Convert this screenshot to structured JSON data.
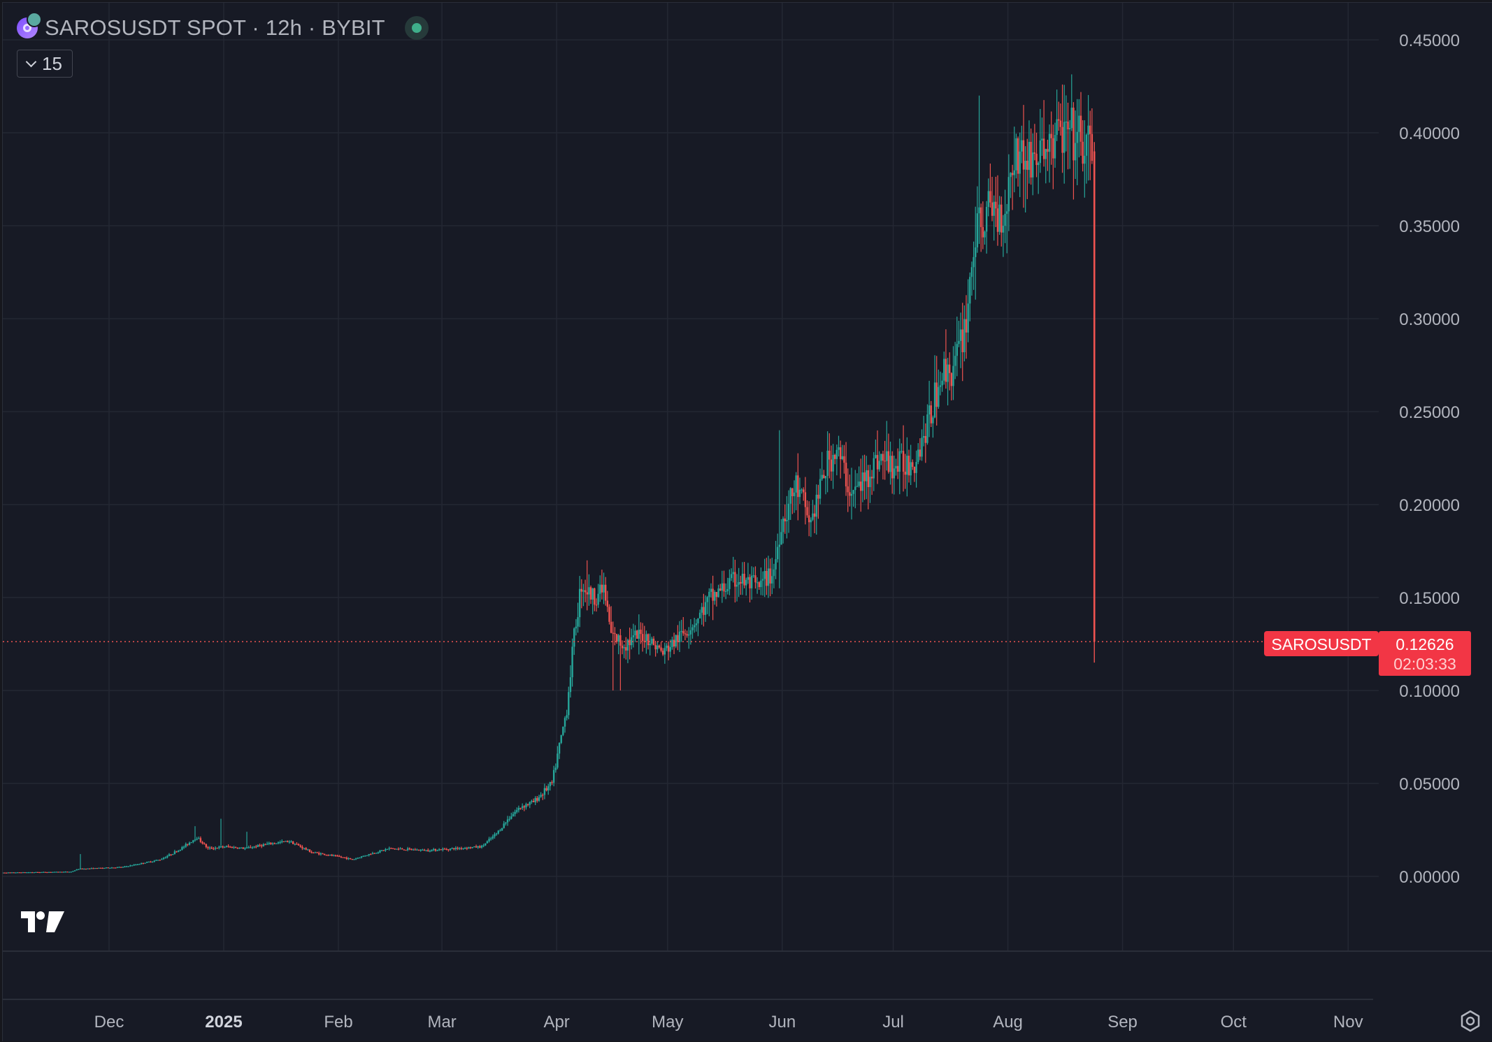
{
  "header": {
    "title": "SAROSUSDT SPOT · 12h · BYBIT",
    "indicator_count": "15"
  },
  "price_label": {
    "symbol": "SAROSUSDT",
    "price": "0.12626",
    "countdown": "02:03:33"
  },
  "colors": {
    "background": "#171a25",
    "up": "#26a69a",
    "down": "#ef5350",
    "grid": "#242733",
    "label_bg": "#f23645"
  },
  "chart_data": {
    "type": "candlestick",
    "symbol": "SAROSUSDT",
    "interval": "12h",
    "exchange": "BYBIT",
    "current_price": 0.12626,
    "ylim": [
      -0.04,
      0.46
    ],
    "y_ticks": [
      "0.45000",
      "0.40000",
      "0.35000",
      "0.30000",
      "0.25000",
      "0.20000",
      "0.15000",
      "0.10000",
      "0.05000",
      "0.00000"
    ],
    "x_ticks": [
      {
        "label": "Dec",
        "date": "2024-12-01"
      },
      {
        "label": "2025",
        "date": "2025-01-01",
        "bold": true
      },
      {
        "label": "Feb",
        "date": "2025-02-01"
      },
      {
        "label": "Mar",
        "date": "2025-03-01"
      },
      {
        "label": "Apr",
        "date": "2025-04-01"
      },
      {
        "label": "May",
        "date": "2025-05-01"
      },
      {
        "label": "Jun",
        "date": "2025-06-01"
      },
      {
        "label": "Jul",
        "date": "2025-07-01"
      },
      {
        "label": "Aug",
        "date": "2025-08-01"
      },
      {
        "label": "Sep",
        "date": "2025-09-01"
      },
      {
        "label": "Oct",
        "date": "2025-10-01"
      },
      {
        "label": "Nov",
        "date": "2025-11-01"
      }
    ],
    "price_path": [
      [
        "2024-11-01",
        0.002
      ],
      [
        "2024-11-21",
        0.0025
      ],
      [
        "2024-11-23",
        0.004
      ],
      [
        "2024-12-05",
        0.005
      ],
      [
        "2024-12-15",
        0.009
      ],
      [
        "2024-12-20",
        0.014
      ],
      [
        "2024-12-25",
        0.021
      ],
      [
        "2024-12-28",
        0.015
      ],
      [
        "2025-01-02",
        0.016
      ],
      [
        "2025-01-07",
        0.015
      ],
      [
        "2025-01-12",
        0.017
      ],
      [
        "2025-01-19",
        0.019
      ],
      [
        "2025-01-25",
        0.013
      ],
      [
        "2025-02-03",
        0.01
      ],
      [
        "2025-02-05",
        0.009
      ],
      [
        "2025-02-08",
        0.011
      ],
      [
        "2025-02-15",
        0.015
      ],
      [
        "2025-02-25",
        0.014
      ],
      [
        "2025-03-05",
        0.015
      ],
      [
        "2025-03-12",
        0.016
      ],
      [
        "2025-03-16",
        0.023
      ],
      [
        "2025-03-20",
        0.033
      ],
      [
        "2025-03-23",
        0.038
      ],
      [
        "2025-03-26",
        0.04
      ],
      [
        "2025-03-31",
        0.05
      ],
      [
        "2025-04-02",
        0.07
      ],
      [
        "2025-04-04",
        0.09
      ],
      [
        "2025-04-06",
        0.13
      ],
      [
        "2025-04-08",
        0.158
      ],
      [
        "2025-04-11",
        0.15
      ],
      [
        "2025-04-14",
        0.155
      ],
      [
        "2025-04-16",
        0.13
      ],
      [
        "2025-04-19",
        0.125
      ],
      [
        "2025-04-25",
        0.13
      ],
      [
        "2025-04-30",
        0.12
      ],
      [
        "2025-05-05",
        0.13
      ],
      [
        "2025-05-09",
        0.138
      ],
      [
        "2025-05-13",
        0.15
      ],
      [
        "2025-05-20",
        0.16
      ],
      [
        "2025-05-26",
        0.155
      ],
      [
        "2025-05-30",
        0.165
      ],
      [
        "2025-06-01",
        0.19
      ],
      [
        "2025-06-05",
        0.21
      ],
      [
        "2025-06-09",
        0.19
      ],
      [
        "2025-06-13",
        0.22
      ],
      [
        "2025-06-16",
        0.23
      ],
      [
        "2025-06-20",
        0.205
      ],
      [
        "2025-06-24",
        0.215
      ],
      [
        "2025-06-27",
        0.225
      ],
      [
        "2025-07-02",
        0.22
      ],
      [
        "2025-07-07",
        0.225
      ],
      [
        "2025-07-11",
        0.245
      ],
      [
        "2025-07-14",
        0.27
      ],
      [
        "2025-07-18",
        0.275
      ],
      [
        "2025-07-21",
        0.3
      ],
      [
        "2025-07-23",
        0.34
      ],
      [
        "2025-07-25",
        0.35
      ],
      [
        "2025-07-28",
        0.36
      ],
      [
        "2025-07-31",
        0.355
      ],
      [
        "2025-08-03",
        0.39
      ],
      [
        "2025-08-07",
        0.385
      ],
      [
        "2025-08-11",
        0.39
      ],
      [
        "2025-08-15",
        0.4
      ],
      [
        "2025-08-20",
        0.395
      ],
      [
        "2025-08-23",
        0.39
      ]
    ],
    "last_candle": {
      "date": "2025-08-24",
      "open": 0.39,
      "high": 0.395,
      "low": 0.115,
      "close": 0.12626
    },
    "wick_highs": [
      {
        "date": "2024-11-23",
        "high": 0.012
      },
      {
        "date": "2024-12-24",
        "high": 0.027
      },
      {
        "date": "2024-12-31",
        "high": 0.031
      },
      {
        "date": "2025-01-07",
        "high": 0.024
      },
      {
        "date": "2025-04-09",
        "high": 0.17
      },
      {
        "date": "2025-04-13",
        "high": 0.165
      },
      {
        "date": "2025-05-31",
        "high": 0.24
      },
      {
        "date": "2025-06-16",
        "high": 0.237
      },
      {
        "date": "2025-06-29",
        "high": 0.245
      },
      {
        "date": "2025-07-24",
        "high": 0.42
      },
      {
        "date": "2025-08-05",
        "high": 0.415
      },
      {
        "date": "2025-08-19",
        "high": 0.412
      }
    ],
    "wick_lows": [
      {
        "date": "2025-04-16",
        "low": 0.1
      },
      {
        "date": "2025-04-18",
        "low": 0.1
      },
      {
        "date": "2025-05-31",
        "low": 0.155
      },
      {
        "date": "2025-06-08",
        "low": 0.183
      },
      {
        "date": "2025-07-26",
        "low": 0.335
      }
    ]
  }
}
